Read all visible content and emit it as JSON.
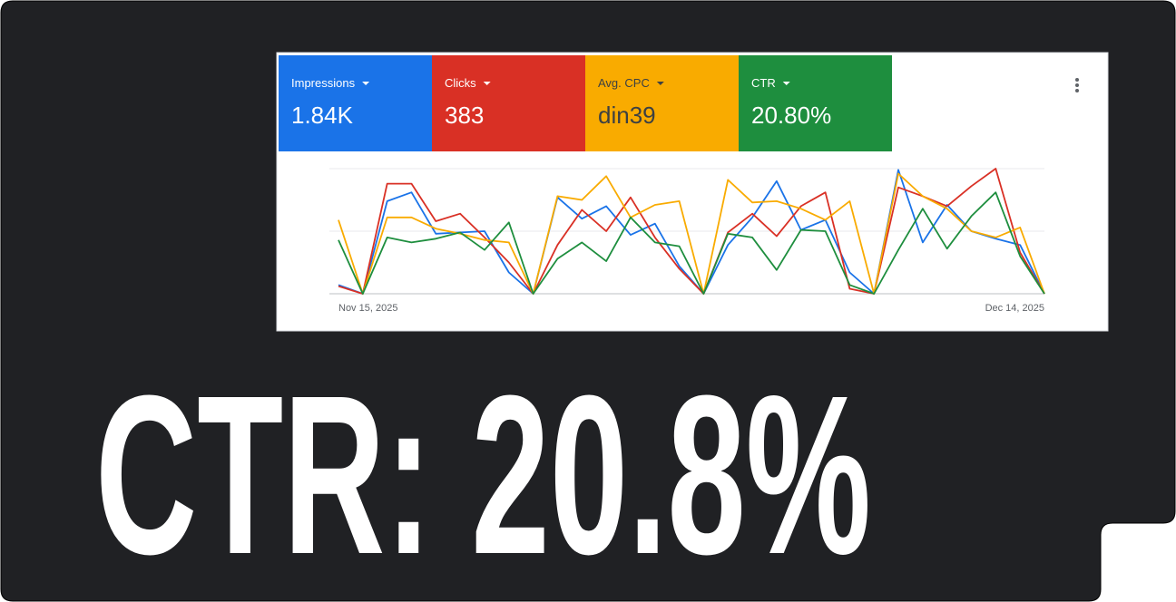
{
  "headline": "CTR: 20.8%",
  "chart_data": {
    "type": "line",
    "categories": [
      "Nov 15, 2025",
      null,
      null,
      null,
      null,
      null,
      null,
      null,
      null,
      null,
      null,
      null,
      null,
      null,
      null,
      null,
      null,
      null,
      null,
      null,
      null,
      null,
      null,
      null,
      null,
      null,
      null,
      null,
      null,
      "Dec 14, 2025"
    ],
    "ylim": [
      0,
      100
    ],
    "grid": true,
    "series": [
      {
        "name": "Impressions",
        "total": "1.84K",
        "color": "#1a73e8",
        "values": [
          7,
          0,
          74,
          81,
          48,
          49,
          50,
          17,
          0,
          77,
          60,
          70,
          47,
          56,
          22,
          0,
          39,
          61,
          90,
          51,
          59,
          17,
          0,
          99,
          41,
          71,
          50,
          44,
          39,
          0
        ]
      },
      {
        "name": "Clicks",
        "total": "383",
        "color": "#d93025",
        "values": [
          6,
          0,
          88,
          88,
          58,
          64,
          45,
          25,
          0,
          39,
          67,
          50,
          77,
          45,
          20,
          0,
          49,
          64,
          46,
          70,
          81,
          4,
          0,
          85,
          78,
          70,
          86,
          100,
          33,
          0
        ]
      },
      {
        "name": "Avg. CPC",
        "total": "din39",
        "color": "#f9ab00",
        "values": [
          59,
          0,
          61,
          61,
          52,
          48,
          43,
          41,
          0,
          78,
          75,
          94,
          61,
          71,
          74,
          0,
          91,
          73,
          74,
          68,
          59,
          74,
          0,
          96,
          78,
          68,
          50,
          45,
          53,
          0
        ]
      },
      {
        "name": "CTR",
        "total": "20.80%",
        "color": "#1e8e3e",
        "values": [
          43,
          0,
          45,
          41,
          44,
          49,
          35,
          57,
          0,
          28,
          41,
          26,
          61,
          41,
          38,
          0,
          48,
          45,
          19,
          51,
          50,
          7,
          0,
          35,
          68,
          36,
          62,
          81,
          30,
          0
        ]
      }
    ]
  }
}
